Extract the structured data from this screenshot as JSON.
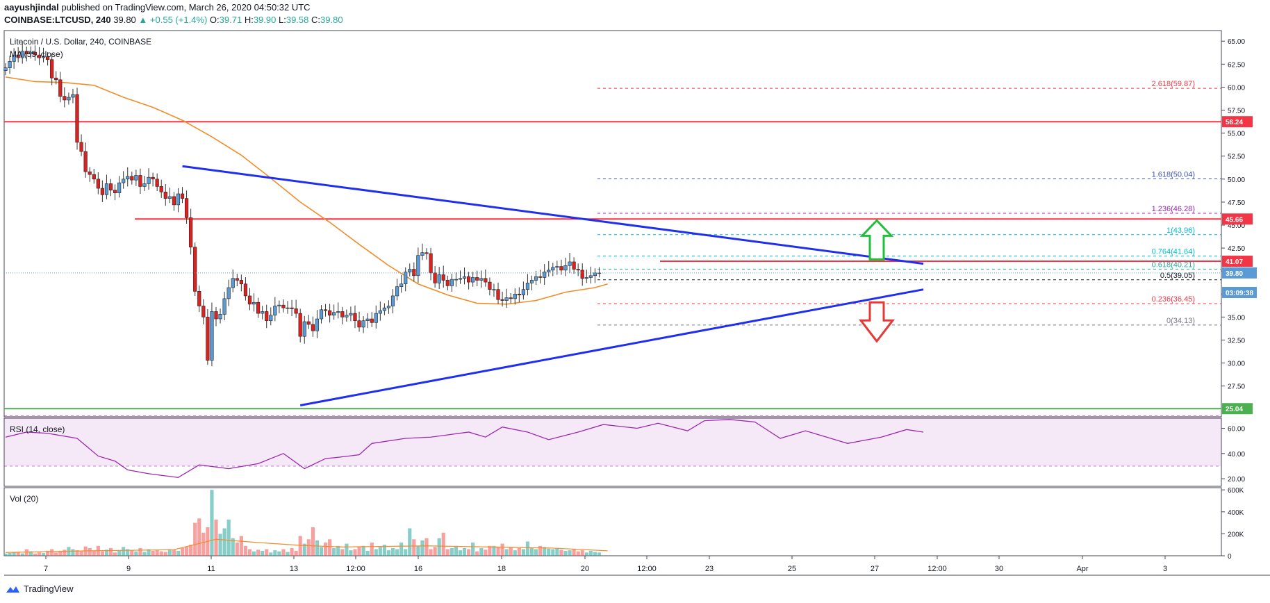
{
  "header": {
    "author": "aayushjindal",
    "published_text": "published on TradingView.com, March 26, 2020 04:50:32 UTC",
    "symbol": "COINBASE:LTCUSD, 240",
    "last": "39.80",
    "change": "+0.55 (+1.4%)",
    "o_label": "O:",
    "o": "39.71",
    "h_label": "H:",
    "h": "39.90",
    "l_label": "L:",
    "l": "39.58",
    "c_label": "C:",
    "c": "39.80"
  },
  "pane_titles": {
    "main": "Litecoin / U.S. Dollar, 240, COINBASE",
    "ma": "MA (55, close)",
    "rsi": "RSI (14, close)",
    "vol": "Vol (20)"
  },
  "footer": {
    "brand": "TradingView"
  },
  "colors": {
    "up": "#26a69a",
    "down": "#ef5350",
    "ma": "#f28c28",
    "trend": "#1e2ff0",
    "resistance": "#f23645",
    "support": "#4caf50",
    "rsi": "#9c27b0"
  },
  "chart_data": {
    "type": "candlestick",
    "x_ticks": [
      "7",
      "9",
      "11",
      "13",
      "12:00",
      "16",
      "18",
      "20",
      "12:00",
      "23",
      "25",
      "27",
      "12:00",
      "30",
      "Apr",
      "3"
    ],
    "y_ticks": [
      "65.00",
      "62.50",
      "60.00",
      "57.50",
      "55.00",
      "52.50",
      "50.00",
      "47.50",
      "45.00",
      "42.50",
      "40.00",
      "37.50",
      "35.00",
      "32.50",
      "30.00",
      "27.50"
    ],
    "ylim": [
      24.0,
      66.0
    ],
    "candles_close": [
      62.1,
      62.8,
      63.5,
      63.2,
      63.9,
      63.6,
      63.8,
      63.5,
      63.2,
      63.3,
      63.0,
      61.0,
      60.8,
      59.0,
      58.6,
      58.9,
      59.2,
      54.0,
      53.0,
      50.8,
      50.5,
      50.0,
      49.0,
      48.3,
      49.5,
      48.8,
      48.5,
      49.6,
      50.0,
      50.3,
      49.9,
      50.4,
      49.2,
      49.5,
      50.2,
      50.0,
      49.2,
      48.6,
      47.9,
      48.1,
      47.2,
      48.4,
      47.9,
      45.8,
      42.6,
      37.8,
      36.2,
      35.0,
      30.3,
      35.6,
      34.8,
      35.3,
      37.0,
      38.2,
      39.2,
      39.0,
      38.6,
      37.3,
      36.4,
      36.6,
      35.4,
      35.6,
      34.6,
      35.2,
      36.2,
      36.3,
      36.0,
      36.0,
      35.9,
      35.4,
      32.9,
      34.5,
      34.2,
      33.5,
      34.8,
      35.8,
      35.7,
      35.2,
      35.5,
      35.6,
      35.0,
      35.2,
      35.4,
      34.6,
      33.9,
      34.6,
      34.8,
      34.4,
      35.4,
      35.7,
      36.0,
      36.2,
      37.3,
      38.3,
      38.6,
      39.9,
      40.2,
      39.5,
      41.7,
      42.0,
      41.9,
      39.8,
      38.7,
      39.6,
      39.0,
      38.4,
      39.1,
      39.1,
      39.2,
      39.4,
      38.8,
      39.3,
      39.0,
      39.2,
      38.8,
      38.0,
      38.0,
      36.9,
      36.8,
      37.1,
      37.0,
      37.5,
      37.4,
      38.0,
      38.7,
      39.0,
      39.4,
      39.3,
      39.9,
      40.1,
      40.4,
      40.5,
      40.1,
      40.6,
      41.0,
      40.2,
      40.1,
      39.2,
      39.3,
      39.5,
      39.8,
      39.8
    ],
    "moving_average": {
      "name": "MA (55, close)",
      "points": [
        [
          0,
          61.1
        ],
        [
          7,
          60.6
        ],
        [
          14,
          60.5
        ],
        [
          21,
          60.2
        ],
        [
          28,
          58.9
        ],
        [
          35,
          57.8
        ],
        [
          42,
          56.4
        ],
        [
          49,
          54.6
        ],
        [
          56,
          52.6
        ],
        [
          63,
          50.1
        ],
        [
          70,
          47.5
        ],
        [
          77,
          45.3
        ],
        [
          84,
          42.9
        ],
        [
          91,
          40.6
        ],
        [
          98,
          38.6
        ],
        [
          105,
          37.4
        ],
        [
          112,
          36.5
        ],
        [
          119,
          36.4
        ],
        [
          126,
          36.8
        ],
        [
          133,
          37.7
        ],
        [
          140,
          38.2
        ],
        [
          143,
          38.6
        ]
      ]
    },
    "horizontal_levels": [
      {
        "label": "56.24",
        "value": 56.24,
        "style": "resistance"
      },
      {
        "label": "45.66",
        "value": 45.66,
        "style": "resistance"
      },
      {
        "label": "41.07",
        "value": 41.07,
        "style": "resistance"
      },
      {
        "label": "25.04",
        "value": 25.04,
        "style": "support"
      }
    ],
    "fibonacci": [
      {
        "label": "2.618(59.87)",
        "value": 59.87,
        "color": "#f23645"
      },
      {
        "label": "1.618(50.04)",
        "value": 50.04,
        "color": "#3f51b5"
      },
      {
        "label": "1.236(46.28)",
        "value": 46.28,
        "color": "#9c27b0"
      },
      {
        "label": "1(43.96)",
        "value": 43.96,
        "color": "#00bcd4"
      },
      {
        "label": "0.764(41.64)",
        "value": 41.64,
        "color": "#00bcd4"
      },
      {
        "label": "0.618(40.21)",
        "value": 40.21,
        "color": "#26a69a"
      },
      {
        "label": "0.5(39.05)",
        "value": 39.05,
        "color": "#131722"
      },
      {
        "label": "0.236(36.45)",
        "value": 36.45,
        "color": "#f23645"
      },
      {
        "label": "0(34.13)",
        "value": 34.13,
        "color": "#787b86"
      }
    ],
    "price_tags": [
      {
        "label": "39.80",
        "value": 39.8,
        "style": "price"
      },
      {
        "label": "03:09:38",
        "value": 37.9,
        "style": "price"
      }
    ],
    "trendlines": [
      {
        "from": [
          42,
          51.4
        ],
        "to": [
          218,
          40.8
        ]
      },
      {
        "from": [
          70,
          25.4
        ],
        "to": [
          218,
          38.0
        ]
      }
    ],
    "arrows": [
      {
        "direction": "up",
        "color": "#1fbf3a"
      },
      {
        "direction": "down",
        "color": "#e53935"
      }
    ],
    "rsi": {
      "y_ticks": [
        "60.00",
        "40.00",
        "20.00"
      ],
      "ylim": [
        14,
        68
      ],
      "band": [
        30,
        70
      ],
      "points": [
        [
          0,
          53
        ],
        [
          5,
          57
        ],
        [
          10,
          56
        ],
        [
          17,
          52
        ],
        [
          22,
          38
        ],
        [
          26,
          34
        ],
        [
          29,
          27
        ],
        [
          34,
          24
        ],
        [
          41,
          21
        ],
        [
          46,
          31
        ],
        [
          53,
          28
        ],
        [
          60,
          32
        ],
        [
          66,
          40
        ],
        [
          71,
          28
        ],
        [
          76,
          36
        ],
        [
          79,
          37
        ],
        [
          84,
          39
        ],
        [
          87,
          48
        ],
        [
          95,
          52
        ],
        [
          101,
          53
        ],
        [
          110,
          57
        ],
        [
          114,
          53
        ],
        [
          118,
          61
        ],
        [
          124,
          57
        ],
        [
          129,
          51
        ],
        [
          136,
          57
        ],
        [
          142,
          63
        ],
        [
          150,
          60
        ],
        [
          155,
          64
        ],
        [
          162,
          58
        ],
        [
          166,
          66
        ],
        [
          172,
          67
        ],
        [
          178,
          65
        ],
        [
          184,
          52
        ],
        [
          190,
          58
        ],
        [
          194,
          54
        ],
        [
          200,
          48
        ],
        [
          208,
          53
        ],
        [
          214,
          59
        ],
        [
          218,
          57
        ]
      ]
    },
    "volume": {
      "y_ticks": [
        "600K",
        "400K",
        "200K",
        "0"
      ],
      "ylim": [
        0,
        620000
      ],
      "values": [
        20000,
        25000,
        30000,
        35000,
        22000,
        60000,
        40000,
        20000,
        30000,
        25000,
        45000,
        60000,
        30000,
        40000,
        55000,
        80000,
        60000,
        50000,
        40000,
        85000,
        70000,
        45000,
        90000,
        40000,
        55000,
        70000,
        30000,
        45000,
        80000,
        60000,
        50000,
        40000,
        70000,
        35000,
        60000,
        45000,
        50000,
        40000,
        35000,
        60000,
        55000,
        45000,
        70000,
        80000,
        100000,
        300000,
        340000,
        210000,
        260000,
        600000,
        330000,
        200000,
        250000,
        330000,
        160000,
        120000,
        180000,
        90000,
        60000,
        40000,
        55000,
        45000,
        60000,
        30000,
        50000,
        40000,
        60000,
        35000,
        70000,
        45000,
        180000,
        110000,
        150000,
        260000,
        140000,
        80000,
        120000,
        150000,
        70000,
        90000,
        60000,
        110000,
        50000,
        60000,
        80000,
        90000,
        45000,
        120000,
        60000,
        80000,
        100000,
        50000,
        70000,
        60000,
        120000,
        60000,
        250000,
        150000,
        90000,
        140000,
        160000,
        60000,
        80000,
        160000,
        210000,
        60000,
        70000,
        90000,
        50000,
        70000,
        60000,
        120000,
        40000,
        70000,
        55000,
        90000,
        90000,
        80000,
        110000,
        60000,
        80000,
        50000,
        70000,
        60000,
        130000,
        70000,
        60000,
        90000,
        80000,
        65000,
        60000,
        70000,
        55000,
        45000,
        50000,
        60000,
        40000,
        50000,
        30000,
        45000,
        35000,
        30000
      ],
      "moving_average": [
        [
          0,
          30000
        ],
        [
          20,
          45000
        ],
        [
          40,
          55000
        ],
        [
          50,
          150000
        ],
        [
          60,
          120000
        ],
        [
          70,
          95000
        ],
        [
          80,
          80000
        ],
        [
          100,
          90000
        ],
        [
          115,
          80000
        ],
        [
          130,
          70000
        ],
        [
          143,
          45000
        ]
      ]
    }
  }
}
